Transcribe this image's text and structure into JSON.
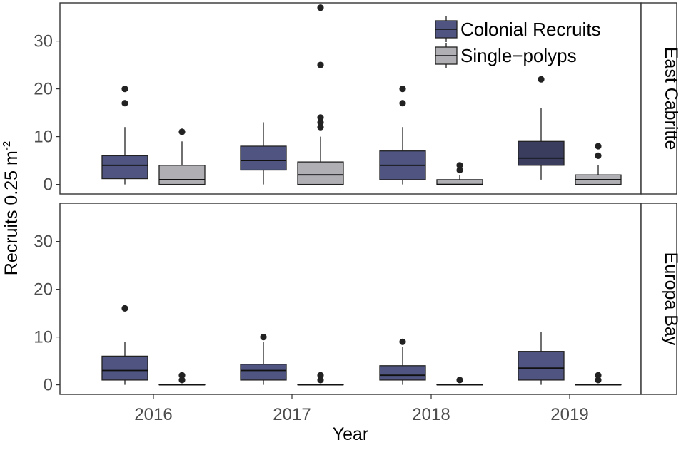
{
  "chart_data": {
    "type": "boxplot",
    "xlabel": "Year",
    "ylabel": "Recruits 0.25 m",
    "ylabel_superscript": "-2",
    "categories": [
      "2016",
      "2017",
      "2018",
      "2019"
    ],
    "ylim": [
      -2,
      38
    ],
    "yticks": [
      0,
      10,
      20,
      30
    ],
    "legend": {
      "position": "top-right",
      "entries": [
        {
          "name": "Colonial Recruits",
          "color": "#4f5580"
        },
        {
          "name": "Single−polyps",
          "color": "#b0b0b4"
        }
      ]
    },
    "series_colors": {
      "colonial": "#4f5580",
      "colonial_dark": "#3a3d5e",
      "single": "#b0b0b4"
    },
    "panels": [
      {
        "strip": "East Cabritte",
        "boxes": [
          {
            "year": "2016",
            "series": "colonial",
            "low": 0,
            "q1": 1.2,
            "median": 4,
            "q3": 6,
            "high": 12,
            "outliers": [
              17,
              20
            ]
          },
          {
            "year": "2016",
            "series": "single",
            "low": 0,
            "q1": 0,
            "median": 1,
            "q3": 4,
            "high": 9,
            "outliers": [
              11
            ]
          },
          {
            "year": "2017",
            "series": "colonial",
            "low": 0,
            "q1": 3,
            "median": 5,
            "q3": 8,
            "high": 13,
            "outliers": []
          },
          {
            "year": "2017",
            "series": "single",
            "low": 0,
            "q1": 0,
            "median": 2,
            "q3": 4.7,
            "high": 10,
            "outliers": [
              12,
              13,
              14,
              25,
              37
            ]
          },
          {
            "year": "2018",
            "series": "colonial",
            "low": 0,
            "q1": 1,
            "median": 4,
            "q3": 7,
            "high": 12,
            "outliers": [
              17,
              20
            ]
          },
          {
            "year": "2018",
            "series": "single",
            "low": 0,
            "q1": 0,
            "median": 0,
            "q3": 1,
            "high": 2,
            "outliers": [
              3,
              4
            ]
          },
          {
            "year": "2019",
            "series": "colonial",
            "low": 1,
            "q1": 4,
            "median": 5.5,
            "q3": 9,
            "high": 16,
            "outliers": [
              22
            ]
          },
          {
            "year": "2019",
            "series": "single",
            "low": 0,
            "q1": 0,
            "median": 1,
            "q3": 2,
            "high": 4,
            "outliers": [
              6,
              8
            ]
          }
        ]
      },
      {
        "strip": "Europa Bay",
        "boxes": [
          {
            "year": "2016",
            "series": "colonial",
            "low": 0,
            "q1": 1,
            "median": 3,
            "q3": 6,
            "high": 9,
            "outliers": [
              16
            ]
          },
          {
            "year": "2016",
            "series": "single",
            "low": 0,
            "q1": 0,
            "median": 0,
            "q3": 0,
            "high": 0,
            "outliers": [
              1,
              2
            ]
          },
          {
            "year": "2017",
            "series": "colonial",
            "low": 0,
            "q1": 1,
            "median": 3,
            "q3": 4.3,
            "high": 9,
            "outliers": [
              10
            ]
          },
          {
            "year": "2017",
            "series": "single",
            "low": 0,
            "q1": 0,
            "median": 0,
            "q3": 0,
            "high": 0,
            "outliers": [
              1,
              2
            ]
          },
          {
            "year": "2018",
            "series": "colonial",
            "low": 0,
            "q1": 1,
            "median": 2,
            "q3": 4,
            "high": 8,
            "outliers": [
              9
            ]
          },
          {
            "year": "2018",
            "series": "single",
            "low": 0,
            "q1": 0,
            "median": 0,
            "q3": 0,
            "high": 0,
            "outliers": [
              1
            ]
          },
          {
            "year": "2019",
            "series": "colonial",
            "low": 0,
            "q1": 1,
            "median": 3.5,
            "q3": 7,
            "high": 11,
            "outliers": []
          },
          {
            "year": "2019",
            "series": "single",
            "low": 0,
            "q1": 0,
            "median": 0,
            "q3": 0,
            "high": 0,
            "outliers": [
              1,
              2
            ]
          }
        ]
      }
    ]
  }
}
